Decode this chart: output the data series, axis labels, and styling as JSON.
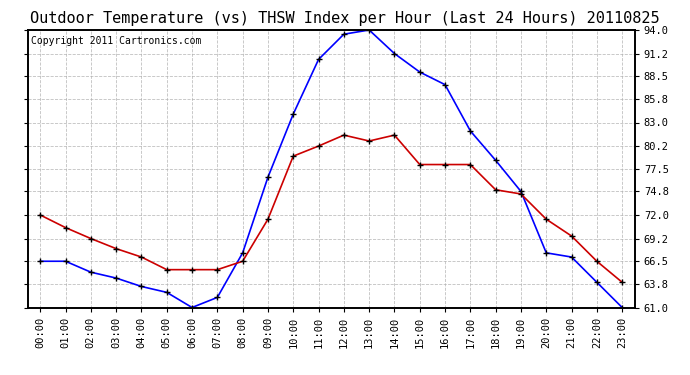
{
  "title": "Outdoor Temperature (vs) THSW Index per Hour (Last 24 Hours) 20110825",
  "copyright": "Copyright 2011 Cartronics.com",
  "hours": [
    0,
    1,
    2,
    3,
    4,
    5,
    6,
    7,
    8,
    9,
    10,
    11,
    12,
    13,
    14,
    15,
    16,
    17,
    18,
    19,
    20,
    21,
    22,
    23
  ],
  "blue_temp": [
    66.5,
    66.5,
    65.2,
    64.5,
    63.5,
    62.8,
    61.0,
    62.2,
    67.5,
    76.5,
    84.0,
    90.5,
    93.5,
    94.0,
    91.2,
    89.0,
    87.5,
    82.0,
    78.5,
    74.8,
    67.5,
    67.0,
    64.0,
    61.0
  ],
  "red_temp": [
    72.0,
    70.5,
    69.2,
    68.0,
    67.0,
    65.5,
    65.5,
    65.5,
    66.5,
    71.5,
    79.0,
    80.2,
    81.5,
    80.8,
    81.5,
    78.0,
    78.0,
    78.0,
    75.0,
    74.5,
    71.5,
    69.5,
    66.5,
    64.0
  ],
  "blue_color": "#0000ff",
  "red_color": "#cc0000",
  "marker": "+",
  "marker_color": "#000000",
  "bg_color": "#ffffff",
  "plot_bg_color": "#ffffff",
  "grid_color": "#b0b0b0",
  "ylim": [
    61.0,
    94.0
  ],
  "yticks": [
    61.0,
    63.8,
    66.5,
    69.2,
    72.0,
    74.8,
    77.5,
    80.2,
    83.0,
    85.8,
    88.5,
    91.2,
    94.0
  ],
  "title_fontsize": 11,
  "copyright_fontsize": 7,
  "tick_fontsize": 7.5,
  "xlabel_rotation": 90
}
